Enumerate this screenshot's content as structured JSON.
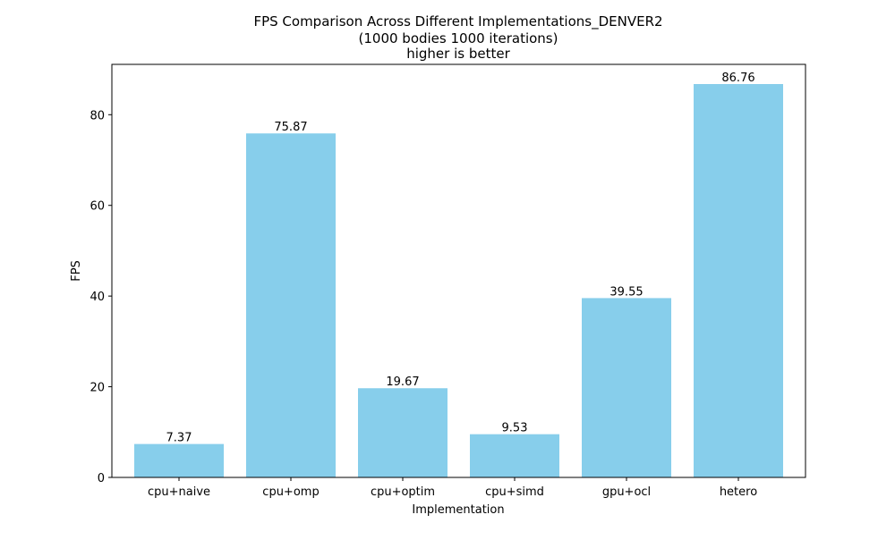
{
  "chart_data": {
    "type": "bar",
    "title": "FPS Comparison Across Different Implementations_DENVER2",
    "subtitle_lines": [
      "(1000 bodies 1000 iterations)",
      "higher is better"
    ],
    "xlabel": "Implementation",
    "ylabel": "FPS",
    "categories": [
      "cpu+naive",
      "cpu+omp",
      "cpu+optim",
      "cpu+simd",
      "gpu+ocl",
      "hetero"
    ],
    "values": [
      7.37,
      75.87,
      19.67,
      9.53,
      39.55,
      86.76
    ],
    "value_labels": [
      "7.37",
      "75.87",
      "19.67",
      "9.53",
      "39.55",
      "86.76"
    ],
    "ylim": [
      0,
      91.1
    ],
    "yticks": [
      0,
      20,
      40,
      60,
      80
    ],
    "ytick_labels": [
      "0",
      "20",
      "40",
      "60",
      "80"
    ],
    "bar_color": "#87ceeb",
    "grid": false,
    "legend": "none"
  }
}
